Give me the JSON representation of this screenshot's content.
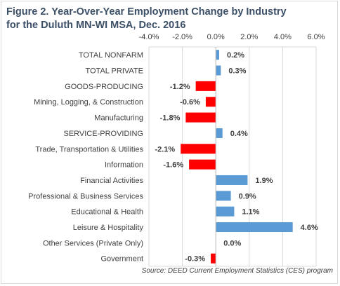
{
  "title_line1": "Figure 2. Year-Over-Year Employment Change by Industry",
  "title_line2": "for the Duluth MN-WI MSA, Dec. 2016",
  "source": "Source: DEED Current Employment Statistics (CES) program",
  "colors": {
    "positive": "#5b9bd5",
    "negative": "#ff0000",
    "grid": "#d9d9d9",
    "text": "#404040"
  },
  "chart_data": {
    "type": "bar",
    "orientation": "horizontal",
    "axis_position": "top",
    "categories": [
      "TOTAL NONFARM",
      "TOTAL PRIVATE",
      "GOODS-PRODUCING",
      "Mining, Logging, & Construction",
      "Manufacturing",
      "SERVICE-PROVIDING",
      "Trade, Transportation & Utilities",
      "Information",
      "Financial Activities",
      "Professional & Business Services",
      "Educational & Health",
      "Leisure & Hospitality",
      "Other Services (Private Only)",
      "Government"
    ],
    "values": [
      0.2,
      0.3,
      -1.2,
      -0.6,
      -1.8,
      0.4,
      -2.1,
      -1.6,
      1.9,
      0.9,
      1.1,
      4.6,
      0.0,
      -0.3
    ],
    "data_labels": [
      "0.2%",
      "0.3%",
      "-1.2%",
      "-0.6%",
      "-1.8%",
      "0.4%",
      "-2.1%",
      "-1.6%",
      "1.9%",
      "0.9%",
      "1.1%",
      "4.6%",
      "0.0%",
      "-0.3%"
    ],
    "xlim": [
      -4.0,
      6.0
    ],
    "ticks": [
      -4.0,
      -2.0,
      0.0,
      2.0,
      4.0,
      6.0
    ],
    "tick_labels": [
      "-4.0%",
      "-2.0%",
      "0.0%",
      "2.0%",
      "4.0%",
      "6.0%"
    ],
    "grid": true,
    "legend": "none"
  }
}
